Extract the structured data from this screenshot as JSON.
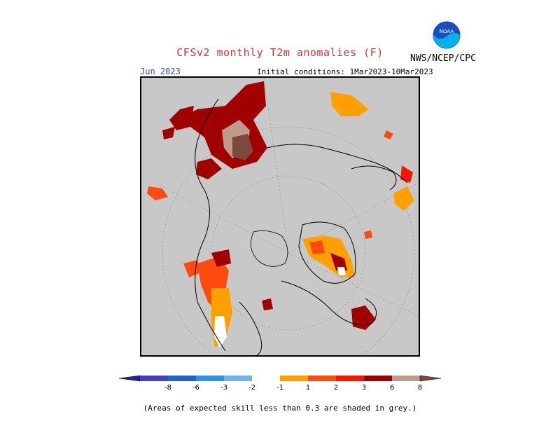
{
  "header": {
    "title": "CFSv2 monthly T2m anomalies (F)",
    "agency": "NWS/NCEP/CPC",
    "month": "Jun 2023",
    "initial_conditions": "Initial conditions: 1Mar2023-10Mar2023"
  },
  "logo": {
    "icon": "noaa-logo-icon",
    "text": "NOAA"
  },
  "map": {
    "projection": "polar-stereographic",
    "background_color": "#c8c8c8",
    "coastline_color": "#000000"
  },
  "colorbar": {
    "ticks": [
      "-8",
      "-6",
      "-3",
      "-2",
      "-1",
      "1",
      "2",
      "3",
      "6",
      "8"
    ],
    "colors": [
      "#2020a0",
      "#4040c0",
      "#2060d0",
      "#3090e8",
      "#70b0f0",
      "#ffffff",
      "#ffa000",
      "#ff4a10",
      "#ff1400",
      "#a00000",
      "#c09a8a",
      "#7a4a3c"
    ]
  },
  "footnote": "(Areas of expected skill less than 0.3 are shaded in grey.)"
}
